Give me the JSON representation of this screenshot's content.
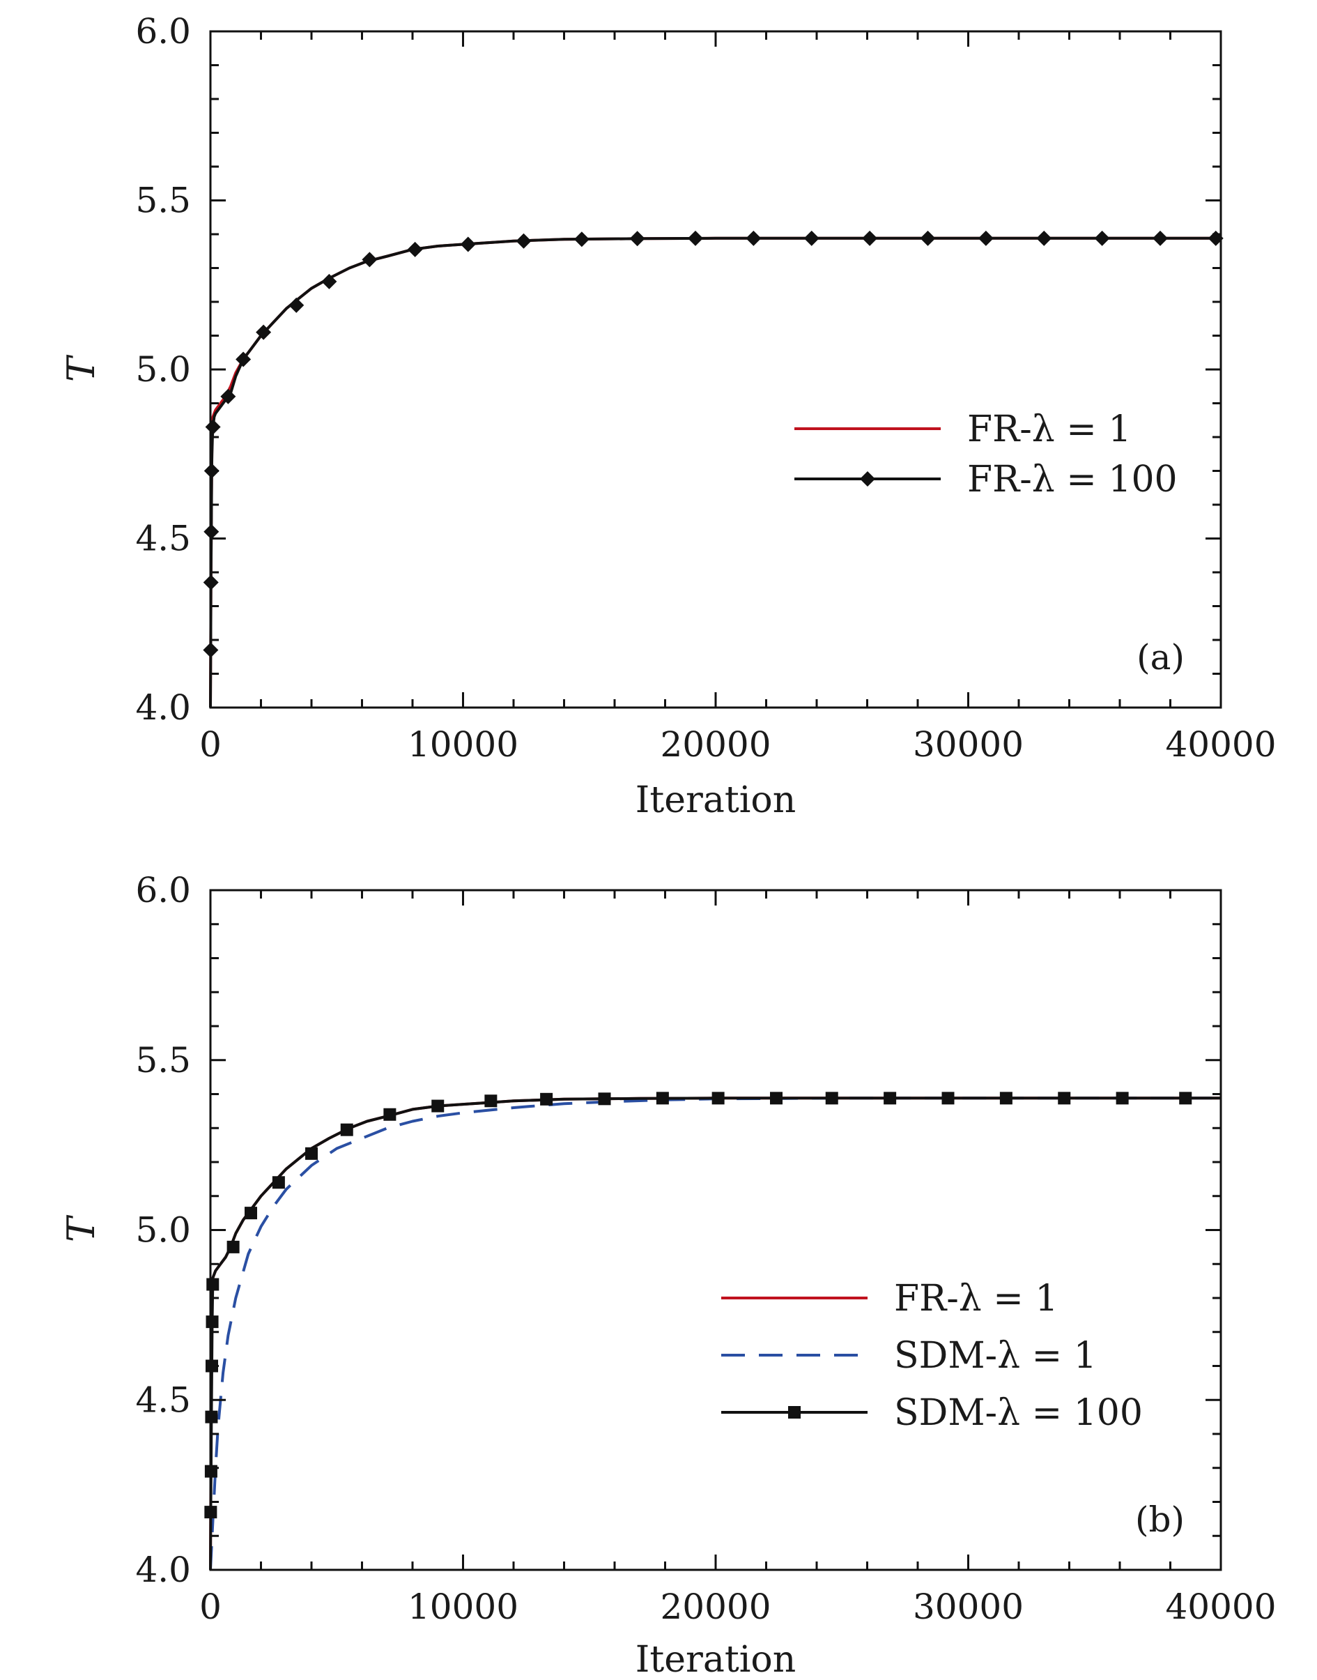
{
  "chart_data": [
    {
      "type": "line",
      "panel_label": "(a)",
      "xlabel": "Iteration",
      "ylabel": "T",
      "xlim": [
        0,
        40000
      ],
      "ylim": [
        4.0,
        6.0
      ],
      "x_ticks": [
        "0",
        "10000",
        "20000",
        "30000",
        "40000"
      ],
      "y_ticks": [
        "4.0",
        "4.5",
        "5.0",
        "5.5",
        "6.0"
      ],
      "legend_position": "right-middle",
      "series": [
        {
          "name": "FR-λ = 1",
          "color": "#c0121e",
          "style": "solid",
          "marker": "none",
          "x": [
            0,
            20,
            40,
            60,
            80,
            100,
            150,
            200,
            400,
            600,
            800,
            1000,
            1300,
            1600,
            2000,
            2500,
            3000,
            3500,
            4000,
            4700,
            5500,
            6200,
            7000,
            8000,
            9000,
            10000,
            11000,
            12000,
            14000,
            17000,
            20000,
            25000,
            30000,
            35000,
            40000
          ],
          "y": [
            4.0,
            4.35,
            4.6,
            4.78,
            4.84,
            4.86,
            4.87,
            4.88,
            4.9,
            4.92,
            4.95,
            4.99,
            5.03,
            5.06,
            5.1,
            5.14,
            5.18,
            5.21,
            5.24,
            5.27,
            5.3,
            5.32,
            5.335,
            5.355,
            5.365,
            5.37,
            5.375,
            5.38,
            5.385,
            5.387,
            5.388,
            5.388,
            5.388,
            5.388,
            5.388
          ]
        },
        {
          "name": "FR-λ = 100",
          "color": "#111111",
          "style": "solid",
          "marker": "diamond",
          "x": [
            0,
            10,
            20,
            35,
            50,
            60,
            80,
            100,
            150,
            200,
            400,
            600,
            800,
            1000,
            1300,
            1600,
            2000,
            2500,
            3000,
            3500,
            4000,
            4700,
            5500,
            6200,
            7000,
            8000,
            9000,
            10000,
            11000,
            12000,
            14000,
            17000,
            20000,
            25000,
            30000,
            35000,
            40000
          ],
          "y": [
            4.0,
            4.17,
            4.37,
            4.52,
            4.7,
            4.75,
            4.8,
            4.83,
            4.86,
            4.87,
            4.89,
            4.91,
            4.93,
            4.98,
            5.03,
            5.06,
            5.1,
            5.14,
            5.18,
            5.21,
            5.24,
            5.27,
            5.3,
            5.32,
            5.335,
            5.355,
            5.365,
            5.37,
            5.375,
            5.38,
            5.385,
            5.387,
            5.388,
            5.388,
            5.388,
            5.388,
            5.388
          ],
          "marker_points": [
            [
              10,
              4.17
            ],
            [
              20,
              4.37
            ],
            [
              35,
              4.52
            ],
            [
              50,
              4.7
            ],
            [
              100,
              4.83
            ],
            [
              700,
              4.92
            ],
            [
              1300,
              5.03
            ],
            [
              2100,
              5.11
            ],
            [
              3400,
              5.19
            ],
            [
              4700,
              5.26
            ],
            [
              6300,
              5.325
            ],
            [
              8100,
              5.355
            ],
            [
              10200,
              5.37
            ],
            [
              12400,
              5.38
            ],
            [
              14700,
              5.385
            ],
            [
              16900,
              5.387
            ],
            [
              19200,
              5.388
            ],
            [
              21500,
              5.388
            ],
            [
              23800,
              5.388
            ],
            [
              26100,
              5.388
            ],
            [
              28400,
              5.388
            ],
            [
              30700,
              5.388
            ],
            [
              33000,
              5.388
            ],
            [
              35300,
              5.388
            ],
            [
              37600,
              5.388
            ],
            [
              39800,
              5.388
            ]
          ]
        }
      ]
    },
    {
      "type": "line",
      "panel_label": "(b)",
      "xlabel": "Iteration",
      "ylabel": "T",
      "xlim": [
        0,
        40000
      ],
      "ylim": [
        4.0,
        6.0
      ],
      "x_ticks": [
        "0",
        "10000",
        "20000",
        "30000",
        "40000"
      ],
      "y_ticks": [
        "4.0",
        "4.5",
        "5.0",
        "5.5",
        "6.0"
      ],
      "legend_position": "right-middle",
      "series": [
        {
          "name": "FR-λ = 1",
          "color": "#c0121e",
          "style": "solid",
          "marker": "none",
          "x": [
            0,
            20,
            40,
            60,
            80,
            100,
            150,
            200,
            400,
            600,
            800,
            1000,
            1300,
            1600,
            2000,
            2500,
            3000,
            3500,
            4000,
            4700,
            5500,
            6200,
            7000,
            8000,
            9000,
            10000,
            11000,
            12000,
            14000,
            17000,
            20000,
            25000,
            30000,
            35000,
            40000
          ],
          "y": [
            4.0,
            4.35,
            4.6,
            4.78,
            4.84,
            4.86,
            4.87,
            4.88,
            4.9,
            4.92,
            4.95,
            4.99,
            5.03,
            5.06,
            5.1,
            5.14,
            5.18,
            5.21,
            5.24,
            5.27,
            5.3,
            5.32,
            5.335,
            5.355,
            5.365,
            5.37,
            5.375,
            5.38,
            5.385,
            5.387,
            5.388,
            5.388,
            5.388,
            5.388,
            5.388
          ]
        },
        {
          "name": "SDM-λ = 1",
          "color": "#2a4fa3",
          "style": "dashed",
          "marker": "none",
          "x": [
            0,
            100,
            200,
            300,
            500,
            700,
            1000,
            1500,
            2000,
            2500,
            3000,
            4000,
            5000,
            6000,
            7000,
            8000,
            9000,
            10000,
            12000,
            14000,
            16000,
            18000,
            20000,
            25000,
            30000,
            35000,
            40000
          ],
          "y": [
            4.0,
            4.15,
            4.3,
            4.42,
            4.58,
            4.69,
            4.8,
            4.93,
            5.01,
            5.07,
            5.12,
            5.19,
            5.24,
            5.27,
            5.3,
            5.32,
            5.335,
            5.345,
            5.36,
            5.372,
            5.378,
            5.383,
            5.386,
            5.388,
            5.388,
            5.388,
            5.388
          ]
        },
        {
          "name": "SDM-λ = 100",
          "color": "#111111",
          "style": "solid",
          "marker": "square",
          "x": [
            0,
            10,
            25,
            40,
            55,
            70,
            90,
            100,
            150,
            200,
            400,
            600,
            800,
            1000,
            1300,
            1600,
            2000,
            2500,
            3000,
            3500,
            4000,
            4700,
            5500,
            6200,
            7000,
            8000,
            9000,
            10000,
            11000,
            12000,
            14000,
            17000,
            20000,
            25000,
            30000,
            35000,
            40000
          ],
          "y": [
            4.0,
            4.17,
            4.29,
            4.45,
            4.6,
            4.73,
            4.84,
            4.86,
            4.87,
            4.88,
            4.9,
            4.92,
            4.95,
            4.99,
            5.03,
            5.06,
            5.1,
            5.14,
            5.18,
            5.21,
            5.24,
            5.27,
            5.3,
            5.32,
            5.335,
            5.355,
            5.365,
            5.37,
            5.375,
            5.38,
            5.385,
            5.387,
            5.388,
            5.388,
            5.388,
            5.388,
            5.388
          ],
          "marker_points": [
            [
              10,
              4.17
            ],
            [
              25,
              4.29
            ],
            [
              40,
              4.45
            ],
            [
              55,
              4.6
            ],
            [
              70,
              4.73
            ],
            [
              90,
              4.84
            ],
            [
              900,
              4.95
            ],
            [
              1600,
              5.05
            ],
            [
              2700,
              5.14
            ],
            [
              4000,
              5.225
            ],
            [
              5400,
              5.295
            ],
            [
              7100,
              5.34
            ],
            [
              9000,
              5.365
            ],
            [
              11100,
              5.38
            ],
            [
              13300,
              5.385
            ],
            [
              15600,
              5.386
            ],
            [
              17900,
              5.388
            ],
            [
              20100,
              5.388
            ],
            [
              22400,
              5.388
            ],
            [
              24600,
              5.388
            ],
            [
              26900,
              5.388
            ],
            [
              29200,
              5.388
            ],
            [
              31500,
              5.388
            ],
            [
              33800,
              5.388
            ],
            [
              36100,
              5.388
            ],
            [
              38600,
              5.388
            ]
          ]
        }
      ]
    }
  ]
}
